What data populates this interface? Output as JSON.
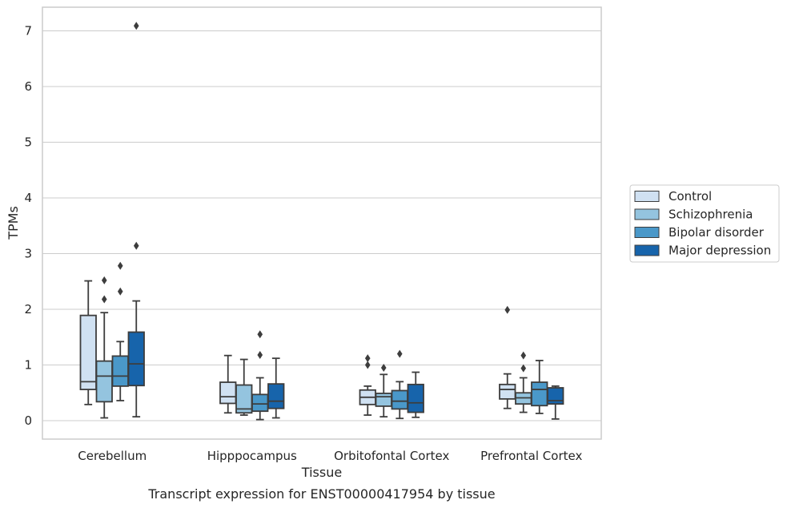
{
  "chart_data": {
    "type": "box",
    "xlabel": "Tissue",
    "ylabel": "TPMs",
    "caption": "Transcript expression for ENST00000417954 by tissue",
    "ylim": [
      -0.33,
      7.45
    ],
    "yticks": [
      0,
      1,
      2,
      3,
      4,
      5,
      6,
      7
    ],
    "grid": true,
    "legend_position": "right",
    "categories": [
      "Cerebellum",
      "Hipppocampus",
      "Orbitofontal Cortex",
      "Prefrontal Cortex"
    ],
    "series": [
      {
        "name": "Control",
        "color": "#d0e1f2",
        "boxes": [
          {
            "whislo": 0.29,
            "q1": 0.56,
            "med": 0.7,
            "q3": 1.89,
            "whishi": 2.51,
            "fliers": []
          },
          {
            "whislo": 0.14,
            "q1": 0.31,
            "med": 0.43,
            "q3": 0.69,
            "whishi": 1.17,
            "fliers": []
          },
          {
            "whislo": 0.1,
            "q1": 0.29,
            "med": 0.42,
            "q3": 0.55,
            "whishi": 0.62,
            "fliers": [
              1.0,
              1.12
            ]
          },
          {
            "whislo": 0.22,
            "q1": 0.39,
            "med": 0.56,
            "q3": 0.65,
            "whishi": 0.84,
            "fliers": [
              1.99
            ]
          }
        ]
      },
      {
        "name": "Schizophrenia",
        "color": "#94c4df",
        "boxes": [
          {
            "whislo": 0.05,
            "q1": 0.34,
            "med": 0.8,
            "q3": 1.07,
            "whishi": 1.94,
            "fliers": [
              2.18,
              2.52
            ]
          },
          {
            "whislo": 0.1,
            "q1": 0.14,
            "med": 0.21,
            "q3": 0.64,
            "whishi": 1.1,
            "fliers": []
          },
          {
            "whislo": 0.07,
            "q1": 0.26,
            "med": 0.43,
            "q3": 0.49,
            "whishi": 0.83,
            "fliers": [
              0.95
            ]
          },
          {
            "whislo": 0.15,
            "q1": 0.3,
            "med": 0.41,
            "q3": 0.5,
            "whishi": 0.77,
            "fliers": [
              0.94,
              1.17
            ]
          }
        ]
      },
      {
        "name": "Bipolar disorder",
        "color": "#4a98c9",
        "boxes": [
          {
            "whislo": 0.36,
            "q1": 0.62,
            "med": 0.8,
            "q3": 1.16,
            "whishi": 1.42,
            "fliers": [
              2.32,
              2.78
            ]
          },
          {
            "whislo": 0.02,
            "q1": 0.17,
            "med": 0.3,
            "q3": 0.47,
            "whishi": 0.77,
            "fliers": [
              1.18,
              1.55
            ]
          },
          {
            "whislo": 0.04,
            "q1": 0.21,
            "med": 0.35,
            "q3": 0.54,
            "whishi": 0.7,
            "fliers": [
              1.2
            ]
          },
          {
            "whislo": 0.13,
            "q1": 0.27,
            "med": 0.56,
            "q3": 0.69,
            "whishi": 1.08,
            "fliers": []
          }
        ]
      },
      {
        "name": "Major depression",
        "color": "#1764ab",
        "boxes": [
          {
            "whislo": 0.07,
            "q1": 0.63,
            "med": 1.02,
            "q3": 1.59,
            "whishi": 2.15,
            "fliers": [
              3.14,
              7.09
            ]
          },
          {
            "whislo": 0.05,
            "q1": 0.22,
            "med": 0.35,
            "q3": 0.66,
            "whishi": 1.12,
            "fliers": []
          },
          {
            "whislo": 0.06,
            "q1": 0.15,
            "med": 0.32,
            "q3": 0.65,
            "whishi": 0.87,
            "fliers": []
          },
          {
            "whislo": 0.03,
            "q1": 0.3,
            "med": 0.36,
            "q3": 0.59,
            "whishi": 0.62,
            "fliers": []
          }
        ]
      }
    ]
  }
}
